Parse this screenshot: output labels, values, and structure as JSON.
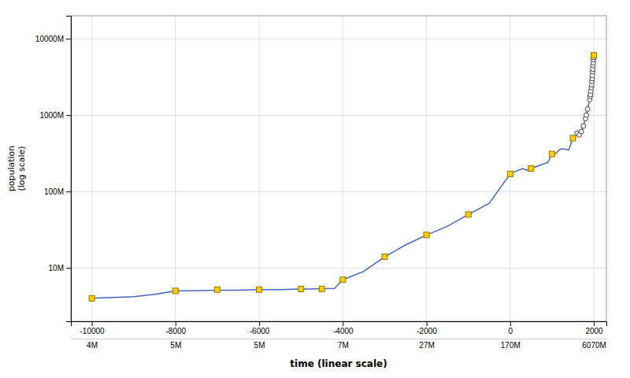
{
  "chart_data": {
    "type": "line",
    "log": "y",
    "grid": true,
    "xlabel": "time (linear scale)",
    "ylabel": "population\n(log scale)",
    "xlim": [
      -10500,
      2300
    ],
    "xticks": [
      -10000,
      -8000,
      -6000,
      -4000,
      -2000,
      0,
      2000
    ],
    "x2lim": [
      -10500,
      2300
    ],
    "x2ticks": [
      {
        "value": -10000,
        "label": "4M"
      },
      {
        "value": -8000,
        "label": "5M"
      },
      {
        "value": -6000,
        "label": "5M"
      },
      {
        "value": -4000,
        "label": "7M"
      },
      {
        "value": -2000,
        "label": "27M"
      },
      {
        "value": 0,
        "label": "170M"
      },
      {
        "value": 2000,
        "label": "6070M"
      }
    ],
    "ylim": [
      2000000,
      20000000000
    ],
    "yticks": [
      {
        "value": 10000000,
        "label": "10M"
      },
      {
        "value": 100000000,
        "label": "100M"
      },
      {
        "value": 1000000000,
        "label": "1000M"
      },
      {
        "value": 10000000000,
        "label": "10000M"
      }
    ],
    "series": [
      {
        "type": "line",
        "color": "#4466bb",
        "x": [
          -10000,
          -9800,
          -9500,
          -9000,
          -8500,
          -8000,
          -7500,
          -7000,
          -6500,
          -6000,
          -5500,
          -5000,
          -4800,
          -4500,
          -4200,
          -4000,
          -3500,
          -3000,
          -2500,
          -2000,
          -1500,
          -1000,
          -500,
          0,
          100,
          200,
          300,
          400,
          500,
          600,
          700,
          800,
          900,
          1000,
          1100,
          1200,
          1300,
          1400,
          1500,
          1600,
          1650,
          1700,
          1750,
          1800,
          1820,
          1850,
          1900,
          1910,
          1920,
          1930,
          1940,
          1950,
          1955,
          1960,
          1965,
          1970,
          1975,
          1980,
          1985,
          1990,
          1995,
          2000
        ],
        "values": [
          4000000,
          4050000,
          4100000,
          4200000,
          4500000,
          5000000,
          5050000,
          5100000,
          5100000,
          5200000,
          5200000,
          5300000,
          5300000,
          5350000,
          5400000,
          7000000,
          9000000,
          14000000,
          20000000,
          27000000,
          35000000,
          50000000,
          70000000,
          170000000,
          180000000,
          190000000,
          200000000,
          190000000,
          200000000,
          210000000,
          220000000,
          230000000,
          240000000,
          310000000,
          320000000,
          360000000,
          360000000,
          350000000,
          500000000,
          580000000,
          550000000,
          610000000,
          720000000,
          900000000,
          1000000000,
          1200000000,
          1600000000,
          1750000000,
          1860000000,
          2070000000,
          2300000000,
          2500000000,
          2770000000,
          3000000000,
          3300000000,
          3700000000,
          4000000000,
          4450000000,
          4850000000,
          5300000000,
          5700000000,
          6070000000
        ]
      },
      {
        "type": "scatter",
        "marker": "circle",
        "color": "#444444",
        "x": [
          1500,
          1600,
          1650,
          1700,
          1750,
          1800,
          1820,
          1850,
          1900,
          1910,
          1920,
          1930,
          1940,
          1950,
          1955,
          1960,
          1965,
          1970,
          1975,
          1980,
          1985,
          1990,
          1995,
          2000
        ],
        "values": [
          500000000,
          580000000,
          550000000,
          610000000,
          720000000,
          900000000,
          1000000000,
          1200000000,
          1600000000,
          1750000000,
          1860000000,
          2070000000,
          2300000000,
          2500000000,
          2770000000,
          3000000000,
          3300000000,
          3700000000,
          4000000000,
          4450000000,
          4850000000,
          5300000000,
          5700000000,
          6070000000
        ]
      },
      {
        "type": "scatter",
        "marker": "square",
        "color": "#ffcc00",
        "x": [
          -10000,
          -8000,
          -7000,
          -6000,
          -5000,
          -4500,
          -4000,
          -3000,
          -2000,
          -1000,
          0,
          500,
          1000,
          1500,
          2000
        ],
        "values": [
          4000000,
          5000000,
          5200000,
          5200000,
          5300000,
          5300000,
          7000000,
          14000000,
          27000000,
          50000000,
          170000000,
          200000000,
          310000000,
          500000000,
          6070000000
        ]
      }
    ]
  }
}
